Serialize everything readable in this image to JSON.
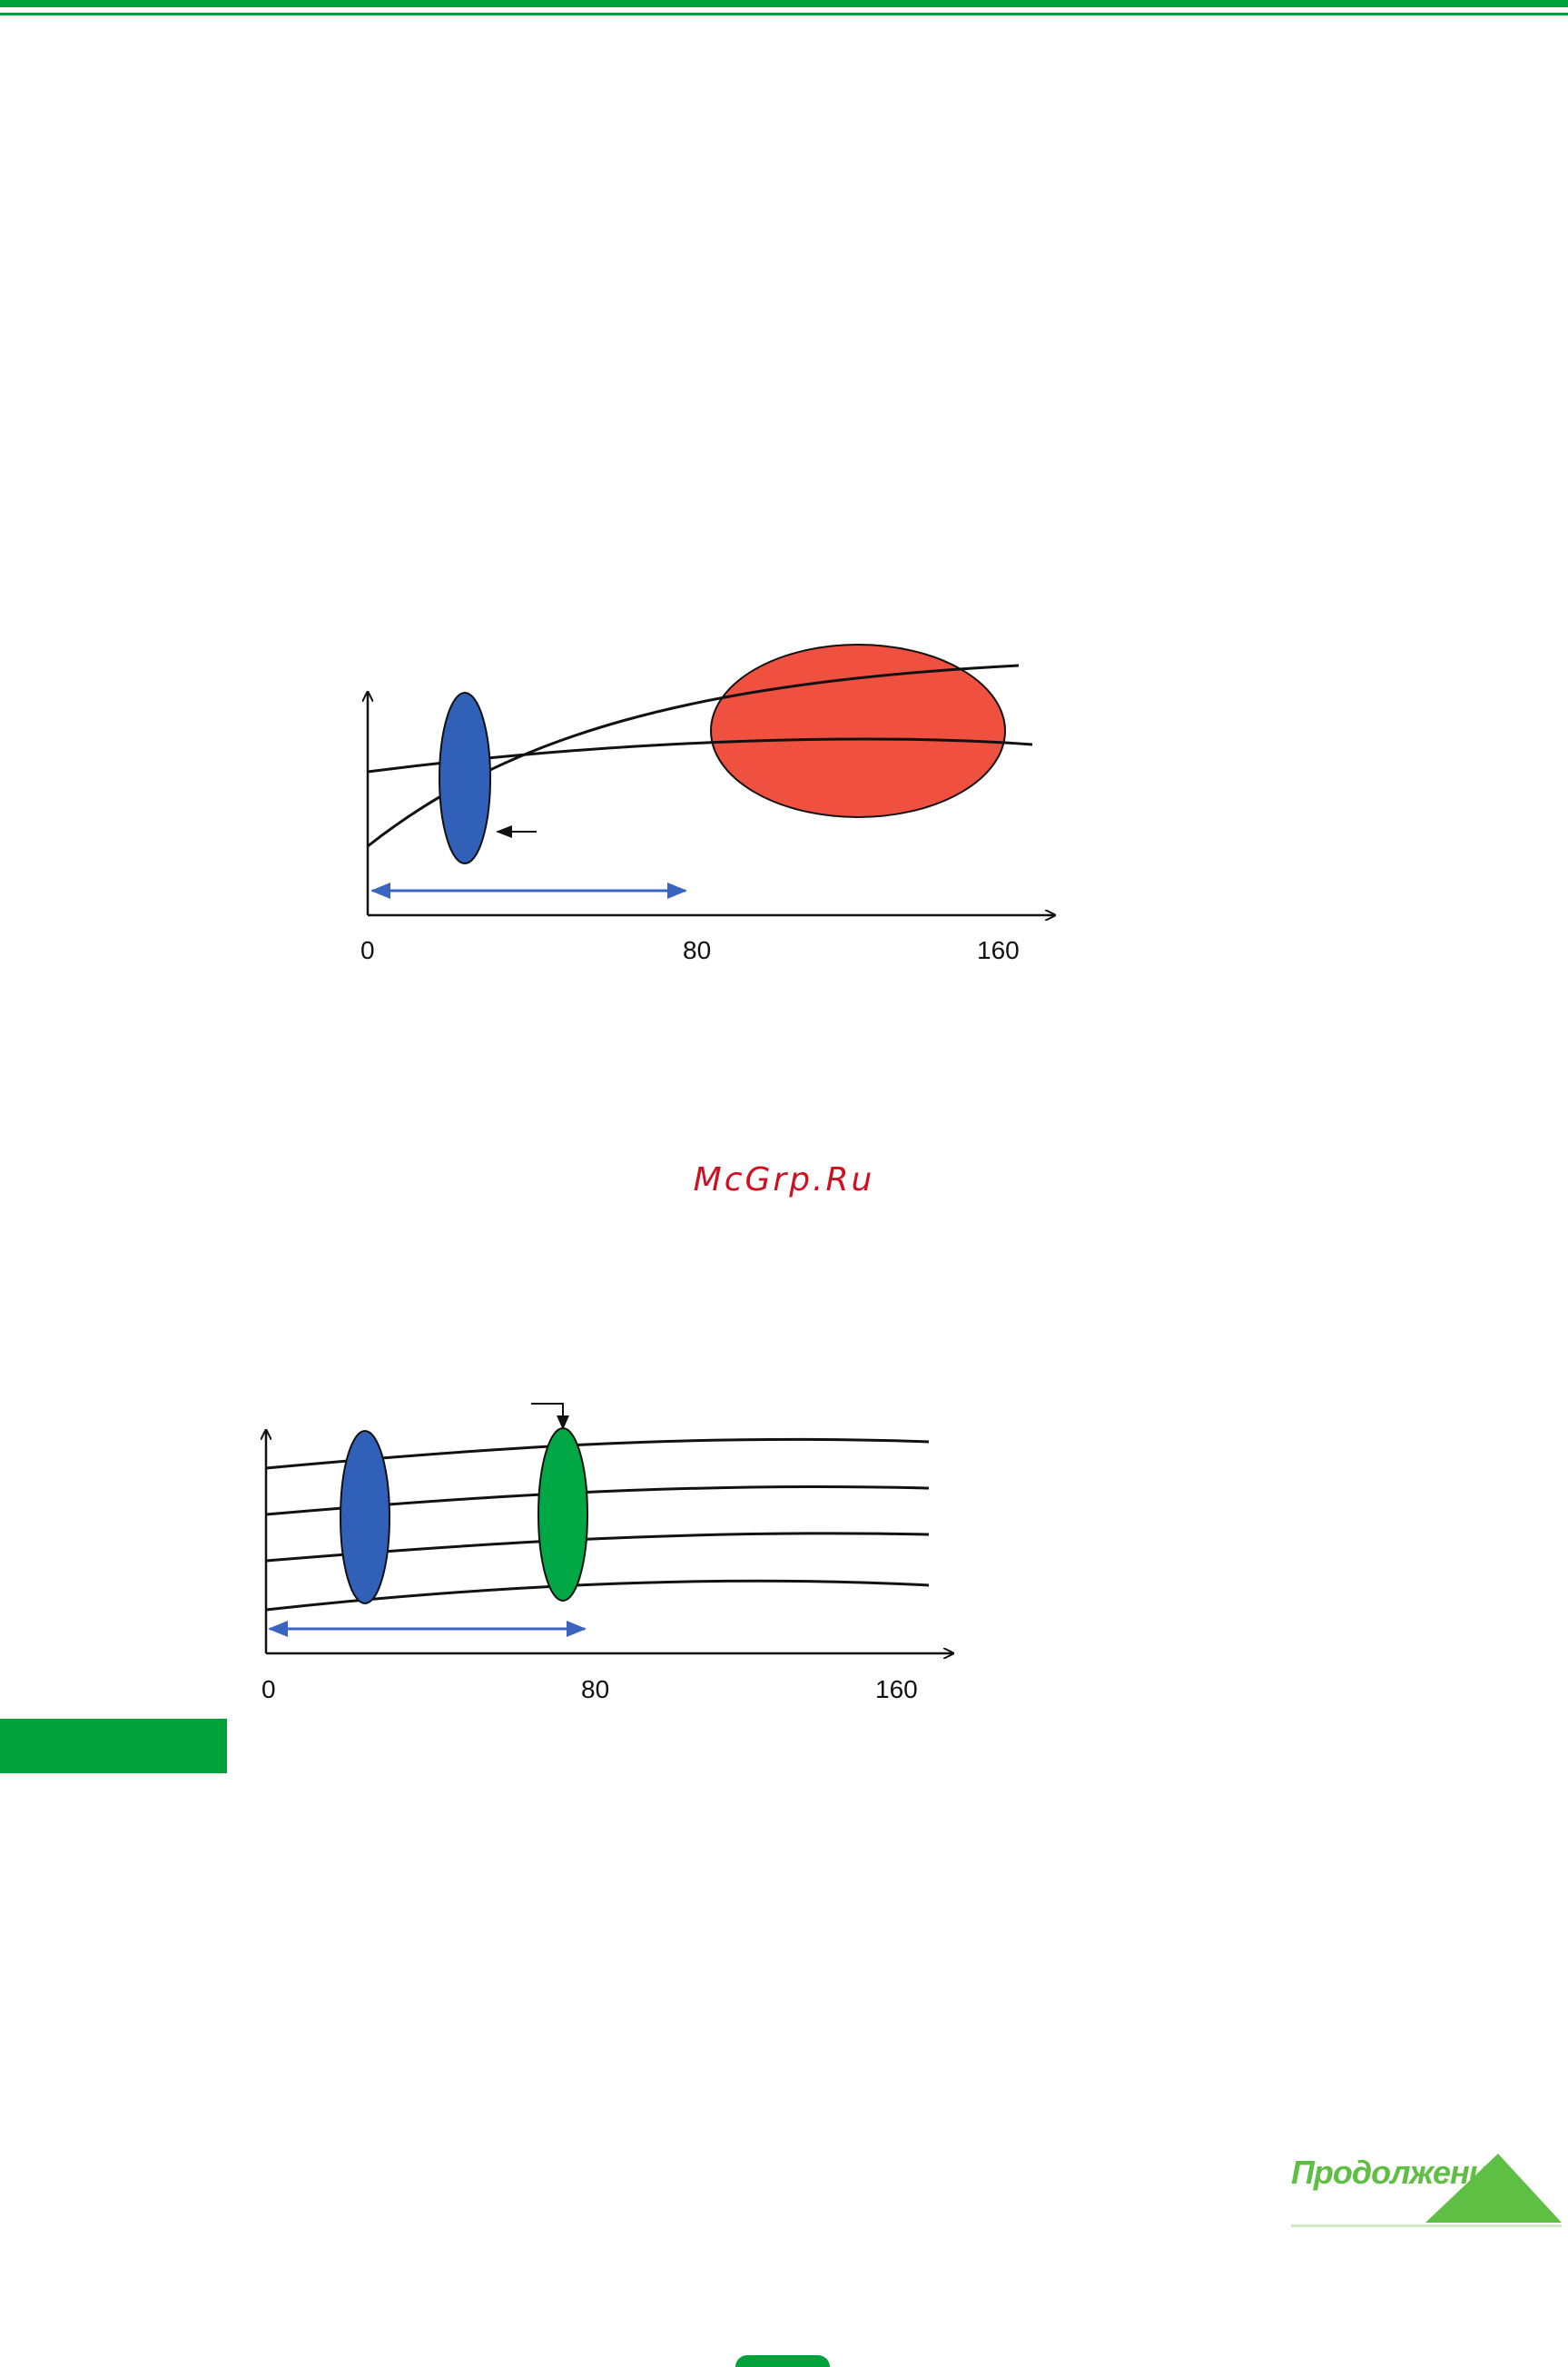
{
  "colors": {
    "accent": "#00a13a",
    "blue_ellipse": "#3060b8",
    "red_ellipse": "#f05040",
    "green_ellipse": "#00a845",
    "range_arrow": "#3b64c0",
    "watermark": "#d01020",
    "continue_text": "#5fbf44"
  },
  "watermark": "McGrp.Ru",
  "continue_button": {
    "label": "Продолжение"
  },
  "diagram_top": {
    "x_ticks": [
      "0",
      "80",
      "160"
    ],
    "curve_count": 2
  },
  "diagram_bottom": {
    "x_ticks": [
      "0",
      "80",
      "160"
    ],
    "curve_count": 4
  },
  "icons": {
    "continue_arrow": "triangle-right-icon"
  }
}
